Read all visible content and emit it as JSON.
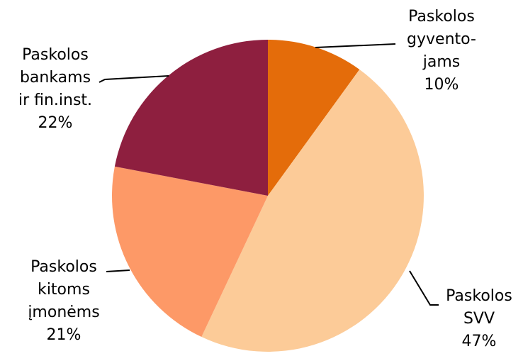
{
  "chart_data": {
    "type": "pie",
    "title": "",
    "start_angle_deg": 0,
    "direction": "clockwise",
    "slices": [
      {
        "label_lines": [
          "Paskolos",
          "gyvento-",
          "jams"
        ],
        "value_label": "10%",
        "value": 10,
        "color": "#E46C0A"
      },
      {
        "label_lines": [
          "Paskolos",
          "SVV"
        ],
        "value_label": "47%",
        "value": 47,
        "color": "#FCCB98"
      },
      {
        "label_lines": [
          "Paskolos",
          "kitoms",
          "įmonėms"
        ],
        "value_label": "21%",
        "value": 21,
        "color": "#FD9967"
      },
      {
        "label_lines": [
          "Paskolos",
          "bankams",
          "ir fin.inst."
        ],
        "value_label": "22%",
        "value": 22,
        "color": "#8E1F3F"
      }
    ]
  }
}
